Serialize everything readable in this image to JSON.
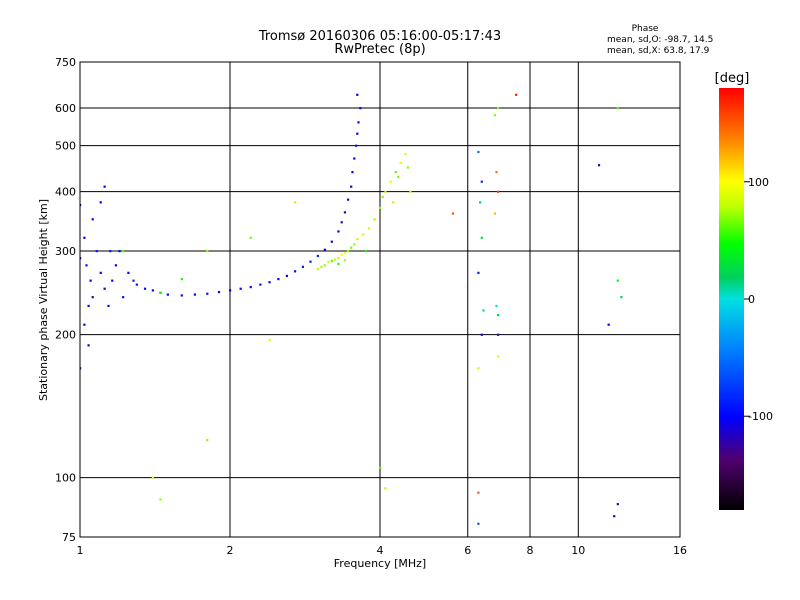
{
  "chart_data": {
    "type": "scatter",
    "title": "Tromsø 20160306 05:16:00-05:17:43",
    "subtitle": "RwPretec (8p)",
    "phase_info": {
      "heading": "Phase",
      "line1": "mean, sd,O: -98.7, 14.5",
      "line2": "mean, sd,X: 63.8, 17.9"
    },
    "xlabel": "Frequency [MHz]",
    "ylabel": "Stationary phase Virtual Height [km]",
    "x_scale": "log",
    "y_scale": "log",
    "xlim": [
      1,
      16
    ],
    "ylim": [
      75,
      750
    ],
    "x_ticks": [
      1,
      2,
      4,
      6,
      8,
      10,
      16
    ],
    "x_tick_labels": [
      "1",
      "2",
      "4",
      "6",
      "8",
      "10",
      "16"
    ],
    "y_ticks": [
      75,
      100,
      200,
      300,
      400,
      500,
      600,
      750
    ],
    "y_tick_labels": [
      "75",
      "100",
      "200",
      "300",
      "400",
      "500",
      "600",
      "750"
    ],
    "grid": true,
    "colorbar": {
      "label": "[deg]",
      "range": [
        -180,
        180
      ],
      "ticks": [
        100,
        0,
        -100
      ],
      "tick_labels": [
        "100",
        "0",
        "-100"
      ]
    },
    "series": [
      {
        "points": [
          [
            1.0,
            290
          ],
          [
            1.02,
            320
          ],
          [
            1.03,
            280
          ],
          [
            1.05,
            260
          ],
          [
            1.06,
            240
          ],
          [
            1.08,
            300
          ],
          [
            1.1,
            270
          ],
          [
            1.12,
            250
          ],
          [
            1.14,
            230
          ],
          [
            1.16,
            260
          ],
          [
            1.18,
            280
          ],
          [
            1.2,
            300
          ],
          [
            1.22,
            240
          ],
          [
            1.25,
            270
          ],
          [
            1.28,
            260
          ],
          [
            1.3,
            255
          ],
          [
            1.35,
            250
          ],
          [
            1.4,
            248
          ],
          [
            1.45,
            245
          ],
          [
            1.5,
            243
          ],
          [
            1.6,
            242
          ],
          [
            1.7,
            243
          ],
          [
            1.8,
            244
          ],
          [
            1.9,
            246
          ],
          [
            2.0,
            248
          ],
          [
            2.1,
            250
          ],
          [
            2.2,
            252
          ],
          [
            2.3,
            255
          ],
          [
            2.4,
            258
          ],
          [
            2.5,
            262
          ],
          [
            2.6,
            266
          ],
          [
            2.7,
            272
          ],
          [
            2.8,
            278
          ],
          [
            2.9,
            285
          ],
          [
            3.0,
            293
          ],
          [
            3.1,
            302
          ],
          [
            3.2,
            314
          ],
          [
            3.3,
            330
          ],
          [
            3.35,
            345
          ],
          [
            3.4,
            362
          ],
          [
            3.45,
            385
          ],
          [
            3.5,
            410
          ],
          [
            3.52,
            440
          ],
          [
            3.55,
            470
          ],
          [
            3.58,
            500
          ],
          [
            3.6,
            530
          ],
          [
            3.62,
            560
          ],
          [
            3.65,
            600
          ],
          [
            3.6,
            640
          ],
          [
            1.02,
            210
          ],
          [
            1.04,
            190
          ],
          [
            1.0,
            170
          ],
          [
            1.06,
            350
          ],
          [
            1.1,
            380
          ],
          [
            1.12,
            410
          ],
          [
            1.15,
            300
          ],
          [
            1.0,
            375
          ],
          [
            1.04,
            230
          ]
        ],
        "phases": [
          -110,
          -100,
          -95,
          -105,
          -120,
          -90,
          -100,
          -110,
          -95,
          -100,
          -105,
          -98,
          -92,
          -100,
          -85,
          -90,
          -100,
          -105,
          -95,
          -100,
          -98,
          -102,
          -96,
          -100,
          -104,
          -99,
          -97,
          -93,
          -101,
          -100,
          -98,
          -95,
          -92,
          -90,
          -88,
          -105,
          -110,
          -115,
          -120,
          -125,
          -118,
          -112,
          -100,
          -108,
          -95,
          -102,
          -98,
          -96,
          -100,
          -110,
          -120,
          -130,
          -105,
          -100,
          -98,
          -90,
          -100,
          -95
        ]
      },
      {
        "points": [
          [
            3.0,
            275
          ],
          [
            3.05,
            278
          ],
          [
            3.1,
            280
          ],
          [
            3.15,
            285
          ],
          [
            3.2,
            286
          ],
          [
            3.25,
            288
          ],
          [
            3.3,
            290
          ],
          [
            3.35,
            295
          ],
          [
            3.4,
            298
          ],
          [
            3.45,
            300
          ],
          [
            3.5,
            305
          ],
          [
            3.55,
            310
          ],
          [
            3.6,
            318
          ],
          [
            3.7,
            325
          ],
          [
            3.8,
            335
          ],
          [
            3.9,
            350
          ],
          [
            4.0,
            370
          ],
          [
            4.1,
            400
          ],
          [
            4.2,
            420
          ],
          [
            4.3,
            440
          ],
          [
            4.4,
            460
          ],
          [
            4.5,
            480
          ],
          [
            4.6,
            400
          ],
          [
            4.55,
            450
          ],
          [
            4.35,
            430
          ],
          [
            4.25,
            380
          ],
          [
            3.75,
            300
          ],
          [
            3.3,
            282
          ],
          [
            3.4,
            287
          ],
          [
            4.05,
            390
          ],
          [
            1.22,
            300
          ],
          [
            1.45,
            245
          ],
          [
            1.6,
            262
          ],
          [
            1.8,
            300
          ],
          [
            2.2,
            320
          ],
          [
            2.7,
            380
          ],
          [
            6.9,
            600
          ],
          [
            6.9,
            180
          ],
          [
            6.3,
            170
          ],
          [
            4.0,
            105
          ],
          [
            4.1,
            95
          ],
          [
            1.4,
            100
          ],
          [
            1.45,
            90
          ],
          [
            1.8,
            120
          ],
          [
            2.4,
            195
          ]
        ],
        "phases": [
          80,
          75,
          70,
          85,
          60,
          78,
          82,
          90,
          95,
          70,
          65,
          72,
          80,
          85,
          88,
          75,
          70,
          80,
          82,
          60,
          90,
          85,
          78,
          70,
          65,
          80,
          50,
          55,
          72,
          68,
          60,
          45,
          50,
          70,
          65,
          80,
          70,
          90,
          85,
          60,
          75,
          80,
          72,
          70,
          90
        ]
      },
      {
        "points": [
          [
            6.3,
            485
          ],
          [
            6.4,
            420
          ],
          [
            6.35,
            380
          ],
          [
            6.4,
            320
          ],
          [
            6.3,
            270
          ],
          [
            6.45,
            225
          ],
          [
            6.4,
            200
          ],
          [
            6.3,
            93
          ],
          [
            6.3,
            80
          ],
          [
            6.8,
            580
          ],
          [
            6.85,
            440
          ],
          [
            6.9,
            400
          ],
          [
            6.8,
            360
          ],
          [
            6.85,
            230
          ],
          [
            6.9,
            220
          ],
          [
            6.9,
            200
          ],
          [
            7.5,
            640
          ],
          [
            5.6,
            360
          ],
          [
            11.0,
            455
          ],
          [
            12.0,
            600
          ],
          [
            12.0,
            260
          ],
          [
            12.2,
            240
          ],
          [
            11.5,
            210
          ],
          [
            12.0,
            88
          ],
          [
            11.8,
            83
          ]
        ],
        "phases": [
          -50,
          -80,
          20,
          30,
          -90,
          10,
          -110,
          150,
          -60,
          70,
          140,
          160,
          120,
          0,
          20,
          -120,
          170,
          150,
          -120,
          60,
          40,
          20,
          -100,
          -130,
          -110
        ]
      }
    ]
  }
}
